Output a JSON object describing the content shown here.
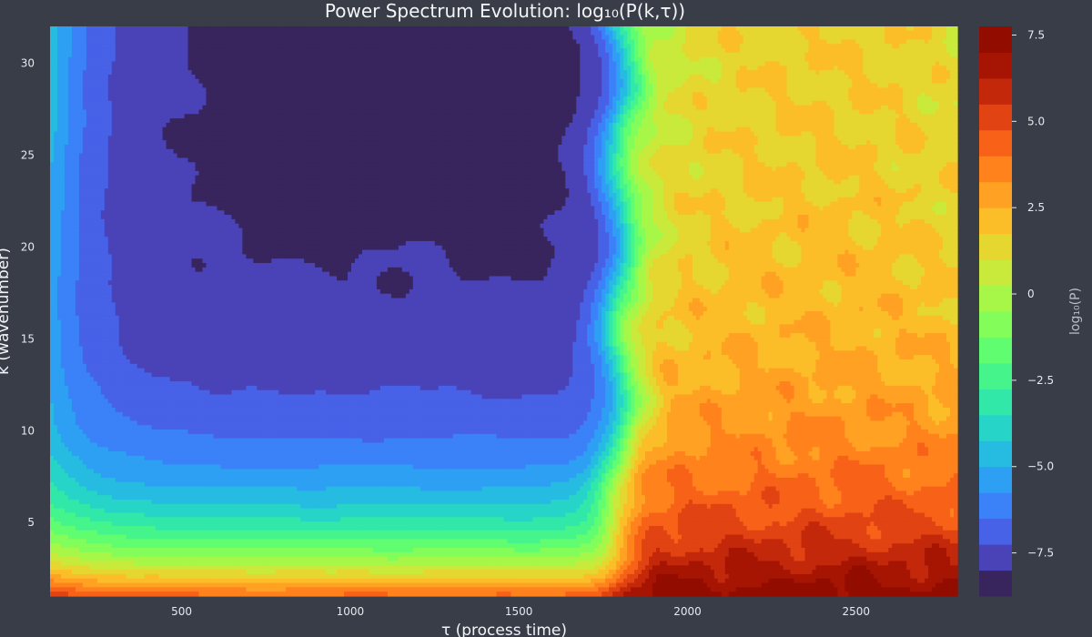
{
  "chart_data": {
    "type": "heatmap",
    "subtype": "filled-contour",
    "title": "Power Spectrum Evolution: log₁₀(P(k,τ))",
    "xlabel": "τ (process time)",
    "ylabel": "k (wavenumber)",
    "xlim": [
      110,
      2800
    ],
    "ylim": [
      1,
      32
    ],
    "x_ticks": [
      500,
      1000,
      1500,
      2000,
      2500
    ],
    "y_ticks": [
      5,
      10,
      15,
      20,
      25,
      30
    ],
    "colorbar": {
      "label": "log₁₀(P)",
      "range": [
        -8.75,
        7.75
      ],
      "levels": 22,
      "ticks": [
        -7.5,
        -5.0,
        -2.5,
        0,
        2.5,
        5.0,
        7.5
      ],
      "tick_labels": [
        "−7.5",
        "−5.0",
        "−2.5",
        "0",
        "2.5",
        "5.0",
        "7.5"
      ],
      "colormap": "turbo"
    },
    "grid_x": [
      110,
      200,
      300,
      400,
      500,
      600,
      700,
      800,
      900,
      1000,
      1100,
      1200,
      1300,
      1400,
      1500,
      1600,
      1700,
      1800,
      1900,
      2000,
      2100,
      2200,
      2300,
      2400,
      2500,
      2600,
      2700,
      2800
    ],
    "grid_y": [
      1,
      2,
      3,
      4,
      5,
      6,
      7,
      8,
      9,
      10,
      11,
      12,
      13,
      14,
      15,
      16,
      17,
      18,
      19,
      20,
      21,
      22,
      23,
      24,
      25,
      26,
      27,
      28,
      29,
      30,
      31,
      32
    ],
    "regions": {
      "early_phase": {
        "x_range": [
          110,
          1700
        ],
        "high_k_value": -8.0,
        "low_k_value": 4.5
      },
      "transition": {
        "x_range": [
          1700,
          1900
        ]
      },
      "late_phase": {
        "x_range": [
          1900,
          2800
        ],
        "high_k_value": 2.2,
        "low_k_value": 7.4
      }
    }
  },
  "colors": {
    "background": "#383d47",
    "text": "#f2f4f7"
  }
}
